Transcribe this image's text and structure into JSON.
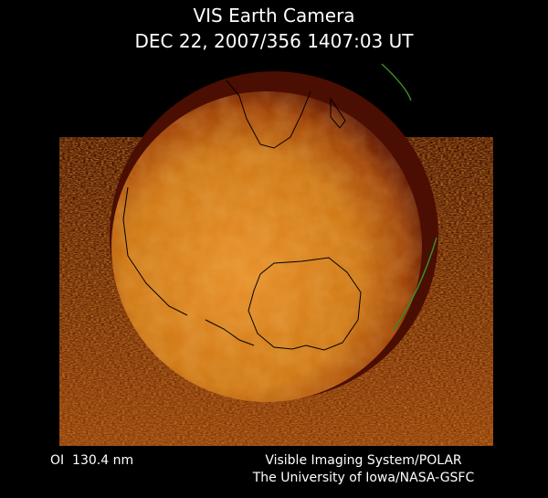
{
  "header": {
    "title": "VIS Earth Camera",
    "timestamp": "DEC 22, 2007/356 1407:03 UT"
  },
  "footer": {
    "wavelength": "OI  130.4 nm",
    "credits": [
      "Visible Imaging System/POLAR",
      "The University of Iowa/NASA-GSFC"
    ]
  }
}
